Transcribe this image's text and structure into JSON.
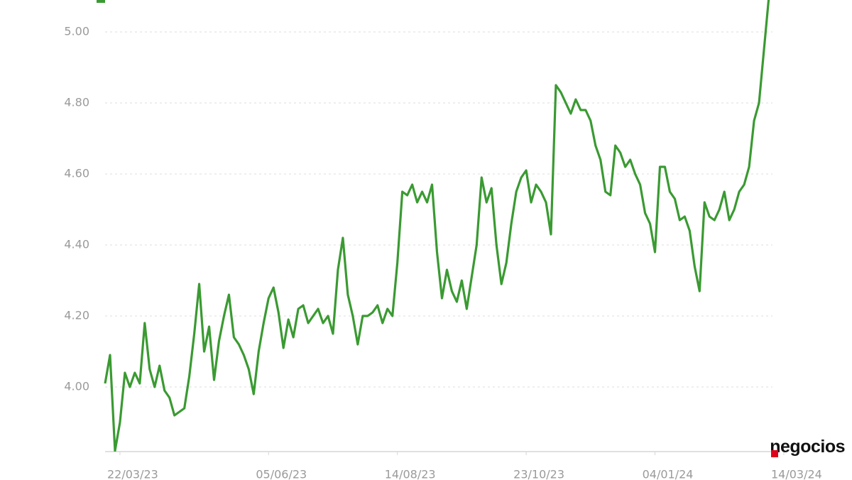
{
  "chart_data": {
    "type": "line",
    "categories": [
      null,
      null,
      null,
      "22/03/23",
      null,
      null,
      null,
      null,
      null,
      null,
      null,
      null,
      null,
      null,
      null,
      null,
      null,
      null,
      null,
      null,
      null,
      null,
      null,
      null,
      null,
      null,
      null,
      null,
      null,
      null,
      null,
      null,
      null,
      "05/06/23",
      null,
      null,
      null,
      null,
      null,
      null,
      null,
      null,
      null,
      null,
      null,
      null,
      null,
      null,
      null,
      null,
      null,
      null,
      null,
      null,
      null,
      null,
      null,
      null,
      null,
      "14/08/23",
      null,
      null,
      null,
      null,
      null,
      null,
      null,
      null,
      null,
      null,
      null,
      null,
      null,
      null,
      null,
      null,
      null,
      null,
      null,
      null,
      null,
      null,
      null,
      null,
      null,
      "23/10/23",
      null,
      null,
      null,
      null,
      null,
      null,
      null,
      null,
      null,
      null,
      null,
      null,
      null,
      null,
      null,
      null,
      null,
      null,
      null,
      null,
      null,
      null,
      null,
      null,
      null,
      "04/01/24",
      null,
      null,
      null,
      null,
      null,
      null,
      null,
      null,
      null,
      null,
      null,
      null,
      null,
      null,
      null,
      null,
      null,
      null,
      null,
      null,
      null,
      null,
      null,
      null,
      null,
      "14/03/24"
    ],
    "series": [
      {
        "color": "#3a9a32",
        "values": [
          4.01,
          4.09,
          3.82,
          3.9,
          4.04,
          4.0,
          4.04,
          4.01,
          4.18,
          4.05,
          4.0,
          4.06,
          3.99,
          3.97,
          3.92,
          3.93,
          3.94,
          4.03,
          4.15,
          4.29,
          4.1,
          4.17,
          4.02,
          4.13,
          4.2,
          4.26,
          4.14,
          4.12,
          4.09,
          4.05,
          3.98,
          4.1,
          4.18,
          4.25,
          4.28,
          4.21,
          4.11,
          4.19,
          4.14,
          4.22,
          4.23,
          4.18,
          4.2,
          4.22,
          4.18,
          4.2,
          4.15,
          4.33,
          4.42,
          4.26,
          4.2,
          4.12,
          4.2,
          4.2,
          4.21,
          4.23,
          4.18,
          4.22,
          4.2,
          4.35,
          4.55,
          4.54,
          4.57,
          4.52,
          4.55,
          4.52,
          4.57,
          4.38,
          4.25,
          4.33,
          4.27,
          4.24,
          4.3,
          4.22,
          4.31,
          4.4,
          4.59,
          4.52,
          4.56,
          4.4,
          4.29,
          4.35,
          4.46,
          4.55,
          4.59,
          4.61,
          4.52,
          4.57,
          4.55,
          4.52,
          4.43,
          4.85,
          4.83,
          4.8,
          4.77,
          4.81,
          4.78,
          4.78,
          4.75,
          4.68,
          4.64,
          4.55,
          4.54,
          4.68,
          4.66,
          4.62,
          4.64,
          4.6,
          4.57,
          4.49,
          4.46,
          4.38,
          4.62,
          4.62,
          4.55,
          4.53,
          4.47,
          4.48,
          4.44,
          4.34,
          4.27,
          4.52,
          4.48,
          4.47,
          4.5,
          4.55,
          4.47,
          4.5,
          4.55,
          4.57,
          4.62,
          4.75,
          4.8,
          4.95,
          5.1,
          null,
          null,
          null
        ]
      }
    ],
    "ylim": [
      3.82,
      5.09
    ],
    "yticks": [
      {
        "value": 4,
        "label": "4.00"
      },
      {
        "value": 4.2,
        "label": "4.20"
      },
      {
        "value": 4.4,
        "label": "4.40"
      },
      {
        "value": 4.6,
        "label": "4.60"
      },
      {
        "value": 4.8,
        "label": "4.80"
      },
      {
        "value": 5,
        "label": "5.00"
      }
    ],
    "grid": true
  },
  "logo": "negocios"
}
